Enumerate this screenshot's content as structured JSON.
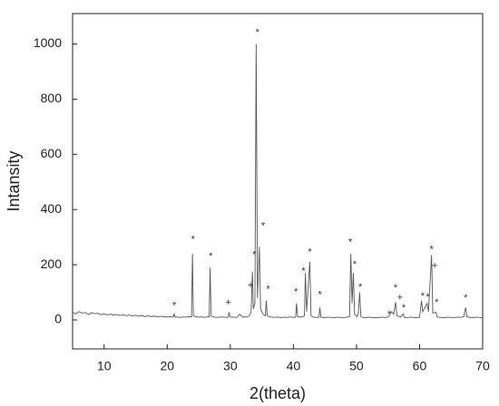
{
  "chart_data": {
    "type": "line",
    "xlabel": "2(theta)",
    "ylabel": "Intansity",
    "color": "#555555",
    "xlim": [
      5,
      70
    ],
    "ylim": [
      -105,
      1110
    ],
    "xticks": [
      10,
      20,
      30,
      40,
      50,
      60,
      70
    ],
    "yticks": [
      0,
      200,
      400,
      600,
      800,
      1000
    ],
    "x": [
      5,
      5.5,
      6,
      6.5,
      7,
      7.5,
      8,
      8.5,
      9,
      9.5,
      10,
      10.5,
      11,
      11.5,
      12,
      12.5,
      13,
      13.5,
      14,
      14.5,
      15,
      15.5,
      16,
      16.5,
      17,
      17.5,
      18,
      18.5,
      19,
      19.5,
      20,
      20.5,
      20.95,
      21.1,
      21.25,
      21.5,
      22,
      22.5,
      23,
      23.5,
      23.85,
      24.0,
      24.15,
      24.5,
      25,
      25.5,
      26,
      26.5,
      26.65,
      26.8,
      26.95,
      27.5,
      28,
      28.5,
      29,
      29.5,
      29.65,
      29.8,
      29.95,
      30.5,
      31,
      31.5,
      32,
      32.5,
      33,
      33.3,
      33.5,
      33.65,
      33.9,
      34.1,
      34.3,
      34.6,
      34.8,
      35.2,
      35.55,
      35.7,
      35.85,
      36.5,
      37,
      37.5,
      38,
      38.5,
      39,
      39.5,
      40,
      40.35,
      40.5,
      40.65,
      41,
      41.5,
      41.75,
      41.9,
      42.1,
      42.6,
      42.8,
      43.2,
      43.6,
      44.05,
      44.2,
      44.35,
      45,
      45.5,
      46,
      46.5,
      47,
      47.5,
      48,
      48.5,
      48.9,
      49.1,
      49.3,
      49.5,
      49.7,
      50.1,
      50.3,
      50.5,
      50.7,
      51,
      51.5,
      52,
      52.5,
      53,
      53.5,
      54,
      54.5,
      55,
      55.6,
      55.9,
      56.2,
      56.4,
      57,
      57.4,
      57.6,
      58,
      58.5,
      59,
      59.5,
      60,
      60.3,
      60.5,
      61.2,
      61.4,
      61.9,
      62.1,
      62.6,
      62.8,
      63.5,
      64,
      64.5,
      65,
      65.5,
      66,
      66.5,
      67,
      67.3,
      67.5,
      68,
      68.5,
      69,
      69.5,
      70
    ],
    "values": [
      28,
      22,
      30,
      25,
      27,
      20,
      26,
      23,
      24,
      19,
      22,
      18,
      21,
      17,
      20,
      16,
      19,
      15,
      18,
      14,
      17,
      13,
      16,
      12,
      15,
      12,
      14,
      11,
      13,
      12,
      10,
      12,
      10,
      22,
      10,
      11,
      9,
      11,
      10,
      12,
      11,
      240,
      15,
      12,
      10,
      11,
      9,
      12,
      11,
      190,
      14,
      10,
      9,
      11,
      10,
      9,
      10,
      28,
      11,
      10,
      9,
      20,
      10,
      11,
      14,
      30,
      175,
      40,
      60,
      1000,
      80,
      265,
      40,
      20,
      15,
      70,
      14,
      10,
      9,
      11,
      8,
      10,
      9,
      11,
      9,
      10,
      60,
      12,
      10,
      12,
      15,
      170,
      30,
      210,
      15,
      10,
      9,
      10,
      45,
      10,
      8,
      10,
      9,
      8,
      10,
      9,
      8,
      10,
      12,
      240,
      60,
      170,
      20,
      12,
      25,
      100,
      12,
      9,
      8,
      10,
      8,
      9,
      8,
      10,
      9,
      10,
      30,
      20,
      65,
      15,
      10,
      22,
      9,
      8,
      10,
      9,
      8,
      10,
      70,
      30,
      60,
      30,
      235,
      25,
      28,
      10,
      9,
      8,
      10,
      9,
      8,
      10,
      9,
      12,
      45,
      12,
      9,
      8,
      10,
      9,
      8
    ],
    "annotations": [
      {
        "text": "*",
        "x": 21.1,
        "y": 50
      },
      {
        "text": "*",
        "x": 24.1,
        "y": 290
      },
      {
        "text": "*",
        "x": 26.9,
        "y": 230
      },
      {
        "text": "+",
        "x": 29.7,
        "y": 62
      },
      {
        "text": "+",
        "x": 33.2,
        "y": 125
      },
      {
        "text": "*",
        "x": 33.8,
        "y": 235
      },
      {
        "text": "*",
        "x": 34.3,
        "y": 1040
      },
      {
        "text": "*",
        "x": 35.2,
        "y": 340
      },
      {
        "text": "*",
        "x": 36.0,
        "y": 110
      },
      {
        "text": "*",
        "x": 40.4,
        "y": 100
      },
      {
        "text": "*",
        "x": 41.6,
        "y": 175
      },
      {
        "text": "*",
        "x": 42.6,
        "y": 245
      },
      {
        "text": "*",
        "x": 44.2,
        "y": 90
      },
      {
        "text": "*",
        "x": 49.0,
        "y": 280
      },
      {
        "text": "*",
        "x": 49.7,
        "y": 200
      },
      {
        "text": "*",
        "x": 50.6,
        "y": 118
      },
      {
        "text": "*",
        "x": 55.2,
        "y": 20
      },
      {
        "text": "*",
        "x": 56.2,
        "y": 115
      },
      {
        "text": "+",
        "x": 56.9,
        "y": 80
      },
      {
        "text": "*",
        "x": 57.5,
        "y": 43
      },
      {
        "text": "*",
        "x": 60.5,
        "y": 85
      },
      {
        "text": "*",
        "x": 61.3,
        "y": 82
      },
      {
        "text": "*",
        "x": 61.9,
        "y": 255
      },
      {
        "text": "+",
        "x": 62.4,
        "y": 195
      },
      {
        "text": "*",
        "x": 62.7,
        "y": 62
      },
      {
        "text": "*",
        "x": 67.3,
        "y": 78
      }
    ]
  }
}
